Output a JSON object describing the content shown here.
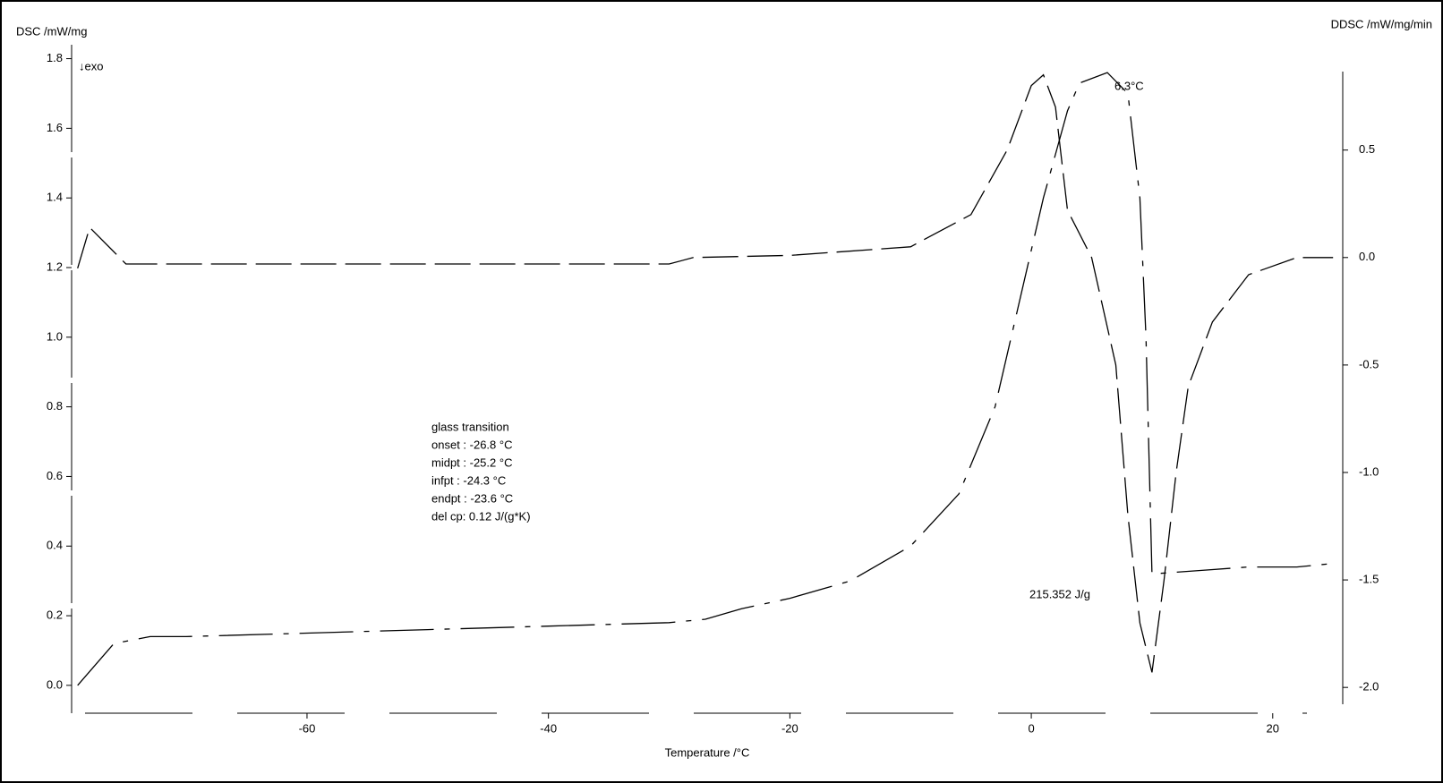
{
  "chart_data": {
    "type": "line",
    "y_label": "DSC /mW/mg",
    "y2_label": "DDSC /mW/mg/min",
    "x_label": "Temperature /°C",
    "annotations": [
      "↓exo",
      "6.3°C",
      "215.352 J/g",
      "glass transition",
      "onset  : -26.8 °C",
      "midpt  : -25.2 °C",
      "infpt  : -24.3 °C",
      "endpt  : -23.6 °C",
      "del cp:  0.12 J/(g*K)"
    ],
    "xlim": [
      -79.5,
      25.8
    ],
    "xticks": [
      -60,
      -40,
      -20,
      0,
      20
    ],
    "ylim": [
      -0.08,
      1.84
    ],
    "yticks": [
      {
        "value": 0,
        "label": "0.0"
      },
      0.2,
      0.4,
      0.6,
      0.8,
      {
        "value": 1,
        "label": "1.0"
      },
      1.2,
      1.4,
      1.6,
      1.8
    ],
    "y2lim": [
      -2.12,
      0.99
    ],
    "y2ticks": [
      {
        "value": -2,
        "label": "-2.0"
      },
      -1.5,
      {
        "value": -1,
        "label": "-1.0"
      },
      -0.5,
      {
        "value": 0,
        "label": "0.0"
      },
      0.5
    ],
    "series": [
      {
        "color": "#000000",
        "axis": "y",
        "x": [
          -79,
          -76,
          -73,
          -70,
          -60,
          -50,
          -40,
          -30,
          -27,
          -24,
          -20,
          -15,
          -10,
          -6,
          -3,
          -1,
          1,
          3,
          4,
          6.3,
          8,
          9,
          9.5,
          10,
          14,
          18,
          22,
          25
        ],
        "values": [
          0.0,
          0.12,
          0.14,
          0.14,
          0.15,
          0.16,
          0.17,
          0.18,
          0.19,
          0.22,
          0.25,
          0.3,
          0.4,
          0.55,
          0.8,
          1.1,
          1.4,
          1.65,
          1.73,
          1.76,
          1.7,
          1.4,
          1.0,
          0.32,
          0.33,
          0.34,
          0.34,
          0.35
        ]
      },
      {
        "color": "#000000",
        "axis": "y2",
        "x": [
          -79,
          -78,
          -75,
          -70,
          -50,
          -30,
          -28,
          -20,
          -10,
          -5,
          -2,
          0,
          1,
          2,
          3,
          5,
          7,
          8,
          9,
          10,
          11,
          12,
          13,
          15,
          18,
          22,
          25
        ],
        "values": [
          -0.05,
          0.14,
          -0.03,
          -0.03,
          -0.03,
          -0.03,
          0.0,
          0.01,
          0.05,
          0.2,
          0.5,
          0.8,
          0.85,
          0.7,
          0.22,
          0.0,
          -0.5,
          -1.2,
          -1.7,
          -1.93,
          -1.5,
          -1.0,
          -0.6,
          -0.3,
          -0.08,
          0.0,
          0.0
        ]
      }
    ]
  }
}
